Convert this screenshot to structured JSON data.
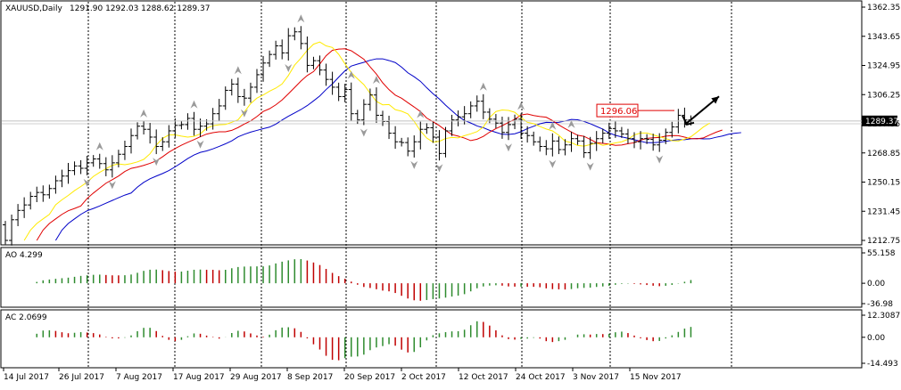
{
  "header": {
    "symbol": "XAUUSD,Daily",
    "ohlc": "1291.90 1292.03 1288.62 1289.37"
  },
  "main_price_axis": {
    "ticks": [
      1362.35,
      1343.65,
      1324.95,
      1306.25,
      1287.55,
      1268.85,
      1250.15,
      1231.45,
      1212.75
    ],
    "tick_labels": [
      "1362.35",
      "1343.65",
      "1324.95",
      "1306.25",
      "1287.55",
      "1268.85",
      "1250.15",
      "1231.45",
      "1212.75"
    ],
    "current_price": "1289.37",
    "annotation_price": "1296.06"
  },
  "ao_panel": {
    "title": "AO 4.299",
    "tick_labels": [
      "55.158",
      "0.00",
      "-36.98"
    ],
    "range": [
      -36.98,
      55.158
    ]
  },
  "ac_panel": {
    "title": "AC 2.0699",
    "tick_labels": [
      "12.3087",
      "0.00",
      "-14.493"
    ],
    "range": [
      -14.493,
      12.3087
    ]
  },
  "x_axis_labels": [
    "14 Jul 2017",
    "26 Jul 2017",
    "7 Aug 2017",
    "17 Aug 2017",
    "29 Aug 2017",
    "8 Sep 2017",
    "20 Sep 2017",
    "2 Oct 2017",
    "12 Oct 2017",
    "24 Oct 2017",
    "3 Nov 2017",
    "15 Nov 2017"
  ],
  "colors": {
    "bars": "#000000",
    "ma_fast": "#ffea00",
    "ma_mid": "#e00000",
    "ma_slow": "#0000c8",
    "ao_up": "#2e8b2e",
    "ao_down": "#c00000",
    "grid": "#000000",
    "annotation": "#e00000"
  },
  "chart_data": {
    "type": "line",
    "ylim": [
      1212.75,
      1362.35
    ],
    "closes": [
      1212.75,
      1226.0,
      1232.0,
      1235.5,
      1241.0,
      1243.5,
      1242.0,
      1246.0,
      1251.0,
      1254.0,
      1257.5,
      1260.5,
      1259.0,
      1262.5,
      1265.0,
      1262.0,
      1258.0,
      1262.5,
      1268.0,
      1273.0,
      1280.0,
      1286.0,
      1284.0,
      1279.0,
      1273.0,
      1276.0,
      1283.0,
      1286.5,
      1287.0,
      1291.0,
      1284.0,
      1286.0,
      1287.5,
      1294.0,
      1299.0,
      1309.0,
      1313.0,
      1305.0,
      1304.0,
      1311.0,
      1319.0,
      1326.5,
      1332.0,
      1337.5,
      1333.0,
      1344.0,
      1346.5,
      1339.0,
      1325.0,
      1328.0,
      1322.0,
      1316.0,
      1311.0,
      1305.0,
      1309.5,
      1294.0,
      1290.0,
      1300.0,
      1306.0,
      1293.0,
      1289.0,
      1281.5,
      1276.0,
      1275.5,
      1270.0,
      1276.0,
      1284.0,
      1285.0,
      1279.0,
      1268.5,
      1283.0,
      1290.0,
      1292.0,
      1294.0,
      1299.0,
      1302.0,
      1295.0,
      1290.5,
      1288.0,
      1282.0,
      1287.0,
      1290.5,
      1281.5,
      1280.0,
      1276.0,
      1273.0,
      1271.5,
      1276.5,
      1271.0,
      1274.0,
      1278.0,
      1276.5,
      1269.0,
      1275.0,
      1278.0,
      1281.5,
      1284.5,
      1283.0,
      1281.0,
      1278.0,
      1276.0,
      1278.0,
      1277.5,
      1274.0,
      1277.0,
      1282.0,
      1285.5,
      1293.0,
      1290.0,
      1289.37
    ],
    "forecast_price": 1306.25
  }
}
